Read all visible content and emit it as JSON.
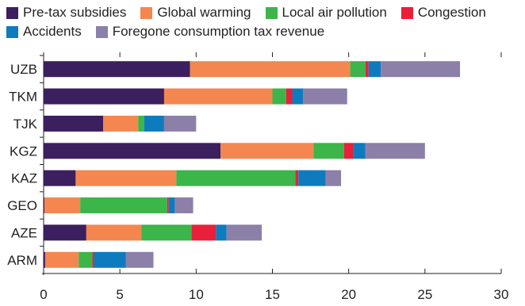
{
  "chart_data": {
    "type": "bar",
    "orientation": "horizontal",
    "stacked": true,
    "categories": [
      "UZB",
      "TKM",
      "TJK",
      "KGZ",
      "KAZ",
      "GEO",
      "AZE",
      "ARM"
    ],
    "series": [
      {
        "name": "Pre-tax subsidies",
        "color": "#3b1f5e",
        "values": [
          9.6,
          7.9,
          3.9,
          11.6,
          2.1,
          0.05,
          2.8,
          0.1
        ]
      },
      {
        "name": "Global warming",
        "color": "#f4874f",
        "values": [
          10.5,
          7.1,
          2.3,
          6.1,
          6.6,
          2.35,
          3.6,
          2.2
        ]
      },
      {
        "name": "Local air pollution",
        "color": "#3cb54a",
        "values": [
          1.0,
          0.9,
          0.4,
          2.0,
          7.8,
          5.7,
          3.3,
          0.9
        ]
      },
      {
        "name": "Congestion",
        "color": "#e8203a",
        "values": [
          0.2,
          0.4,
          0.0,
          0.6,
          0.2,
          0.1,
          1.6,
          0.1
        ]
      },
      {
        "name": "Accidents",
        "color": "#0f7bbf",
        "values": [
          0.8,
          0.7,
          1.3,
          0.8,
          1.8,
          0.4,
          0.7,
          2.1
        ]
      },
      {
        "name": "Foregone consumption tax revenue",
        "color": "#8c7fa8",
        "values": [
          5.2,
          2.9,
          2.1,
          3.9,
          1.0,
          1.2,
          2.3,
          1.8
        ]
      }
    ],
    "legend_rows": [
      [
        "Pre-tax subsidies",
        "Global warming",
        "Local air pollution",
        "Congestion"
      ],
      [
        "Accidents",
        "Foregone consumption tax revenue"
      ]
    ],
    "x_ticks": [
      0,
      5,
      10,
      15,
      20,
      25,
      30
    ],
    "xlim": [
      0,
      30
    ],
    "title": "",
    "xlabel": "",
    "ylabel": "",
    "grid": false,
    "legend_position": "top"
  }
}
